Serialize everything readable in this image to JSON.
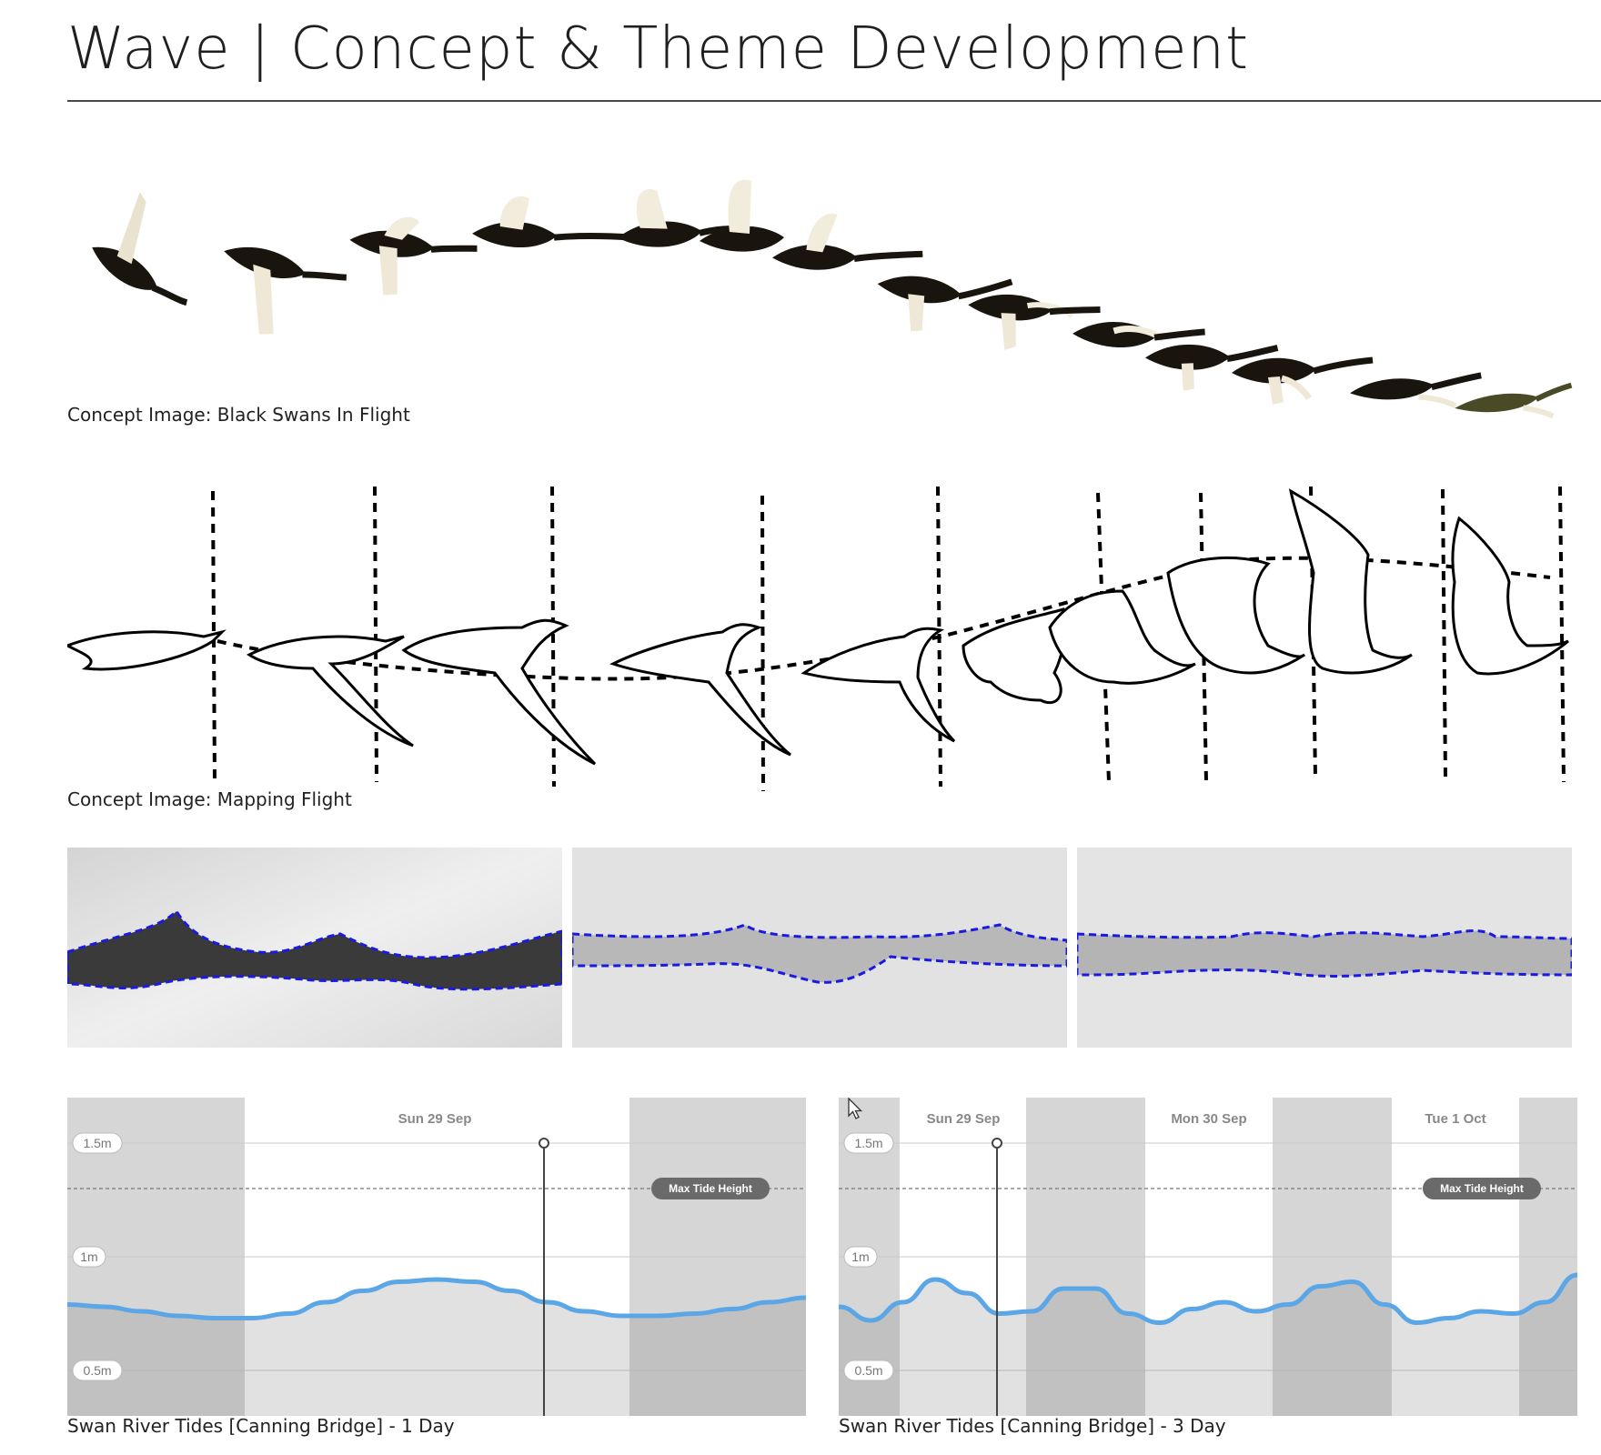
{
  "page": {
    "title": "Wave | Concept & Theme Development"
  },
  "captions": {
    "swans": "Concept Image: Black Swans In Flight",
    "mapping": "Concept Image: Mapping Flight",
    "tides_1day": "Swan River Tides [Canning Bridge] - 1 Day",
    "tides_3day": "Swan River Tides [Canning Bridge] - 3 Day"
  },
  "colors": {
    "tide_line": "#5aa6e6",
    "night_band": "#d6d6d6",
    "wave_outline": "#1a1ae0"
  },
  "chart_data": [
    {
      "type": "area",
      "title": "",
      "x_labels": [
        "Sun 29 Sep"
      ],
      "y_ticks": [
        "0.5m",
        "1m",
        "1.5m"
      ],
      "ylim": [
        0.3,
        1.7
      ],
      "reference_line": {
        "label": "Max Tide Height",
        "value": 1.3
      },
      "series": [
        {
          "values": [
            0.79,
            0.78,
            0.76,
            0.74,
            0.73,
            0.73,
            0.75,
            0.8,
            0.85,
            0.89,
            0.9,
            0.89,
            0.85,
            0.8,
            0.76,
            0.74,
            0.74,
            0.75,
            0.77,
            0.8,
            0.82
          ]
        }
      ],
      "day_bands": [
        "night",
        "day",
        "night"
      ]
    },
    {
      "type": "area",
      "title": "",
      "x_labels": [
        "Sun 29 Sep",
        "Mon 30 Sep",
        "Tue 1 Oct"
      ],
      "y_ticks": [
        "0.5m",
        "1m",
        "1.5m"
      ],
      "ylim": [
        0.3,
        1.7
      ],
      "reference_line": {
        "label": "Max Tide Height",
        "value": 1.3
      },
      "series": [
        {
          "values": [
            0.78,
            0.72,
            0.8,
            0.9,
            0.84,
            0.75,
            0.76,
            0.86,
            0.86,
            0.75,
            0.71,
            0.77,
            0.8,
            0.76,
            0.79,
            0.87,
            0.89,
            0.79,
            0.71,
            0.73,
            0.76,
            0.75,
            0.8,
            0.92
          ]
        }
      ],
      "day_bands": [
        "night",
        "day",
        "night",
        "day",
        "night",
        "day",
        "night"
      ]
    }
  ]
}
